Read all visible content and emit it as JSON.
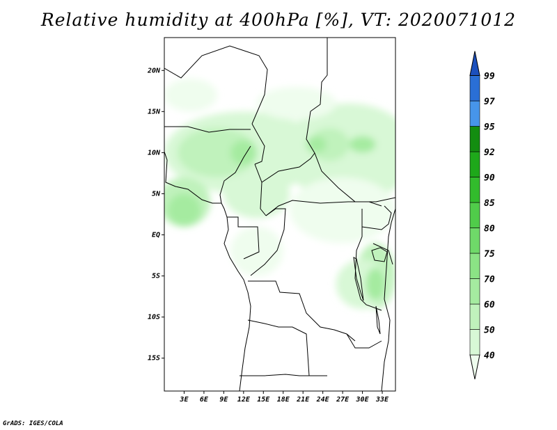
{
  "title": "Relative humidity at 400hPa [%], VT: 2020071012",
  "credit": "GrADS: IGES/COLA",
  "map": {
    "lon_range": [
      0,
      35
    ],
    "lat_range": [
      -19,
      24
    ],
    "lat_ticks": [
      "20N",
      "15N",
      "10N",
      "5N",
      "EQ",
      "5S",
      "10S",
      "15S"
    ],
    "lon_ticks": [
      "3E",
      "6E",
      "9E",
      "12E",
      "15E",
      "18E",
      "21E",
      "24E",
      "27E",
      "30E",
      "33E"
    ]
  },
  "colorbar": {
    "levels": [
      "40",
      "50",
      "60",
      "70",
      "75",
      "80",
      "85",
      "90",
      "92",
      "95",
      "97",
      "99"
    ],
    "colors": [
      "#effdee",
      "#d8f8d6",
      "#c0f2bc",
      "#a5eba0",
      "#8be385",
      "#6fd969",
      "#50cc4a",
      "#32bb2c",
      "#1ea81a",
      "#138d10",
      "#4795ea",
      "#2a6fd6",
      "#1c50bd"
    ]
  },
  "humidity_field": [
    {
      "lon": 12,
      "lat": 10,
      "rx": 12,
      "ry": 5,
      "level": 1
    },
    {
      "lon": 28,
      "lat": 10,
      "rx": 10,
      "ry": 6,
      "level": 1
    },
    {
      "lon": 8,
      "lat": 10,
      "rx": 6,
      "ry": 3,
      "level": 2
    },
    {
      "lon": 25,
      "lat": 11,
      "rx": 3,
      "ry": 2,
      "level": 2
    },
    {
      "lon": 3,
      "lat": 4,
      "rx": 4,
      "ry": 3,
      "level": 2
    },
    {
      "lon": 32,
      "lat": -5,
      "rx": 3,
      "ry": 4,
      "level": 2
    },
    {
      "lon": 14,
      "lat": 5,
      "rx": 5,
      "ry": 3,
      "level": 1
    },
    {
      "lon": 27,
      "lat": 3,
      "rx": 8,
      "ry": 4,
      "level": 0
    },
    {
      "lon": 14,
      "lat": -2,
      "rx": 4,
      "ry": 3,
      "level": 0
    },
    {
      "lon": 30,
      "lat": -6,
      "rx": 4,
      "ry": 3,
      "level": 1
    },
    {
      "lon": 3,
      "lat": 3,
      "rx": 2.5,
      "ry": 2,
      "level": 3
    },
    {
      "lon": 12,
      "lat": 10,
      "rx": 2,
      "ry": 1.5,
      "level": 3
    },
    {
      "lon": 23,
      "lat": 11,
      "rx": 1.5,
      "ry": 1,
      "level": 3
    },
    {
      "lon": 30,
      "lat": 11,
      "rx": 2,
      "ry": 1,
      "level": 3
    },
    {
      "lon": 32,
      "lat": -6,
      "rx": 1.5,
      "ry": 2,
      "level": 3
    },
    {
      "lon": 20,
      "lat": 16,
      "rx": 6,
      "ry": 2,
      "level": 0
    },
    {
      "lon": 4,
      "lat": 17,
      "rx": 4,
      "ry": 2,
      "level": 0
    }
  ]
}
